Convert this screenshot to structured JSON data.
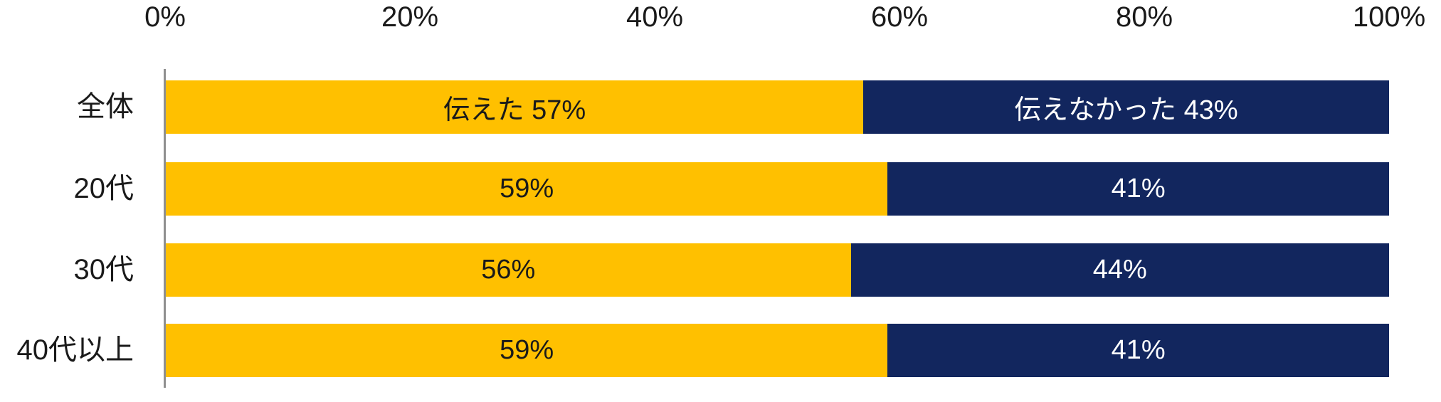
{
  "chart_data": {
    "type": "bar",
    "orientation": "horizontal",
    "stacked": true,
    "categories": [
      "全体",
      "20代",
      "30代",
      "40代以上"
    ],
    "series": [
      {
        "name": "伝えた",
        "values": [
          57,
          59,
          56,
          59
        ],
        "color": "#FFC000",
        "text_color": "#1a1a1a"
      },
      {
        "name": "伝えなかった",
        "values": [
          43,
          41,
          44,
          41
        ],
        "color": "#12265E",
        "text_color": "#ffffff"
      }
    ],
    "segment_labels": [
      [
        "伝えた 57%",
        "伝えなかった 43%"
      ],
      [
        "59%",
        "41%"
      ],
      [
        "56%",
        "44%"
      ],
      [
        "59%",
        "41%"
      ]
    ],
    "x_tick_labels": [
      "0%",
      "20%",
      "40%",
      "60%",
      "80%",
      "100%"
    ],
    "xlim": [
      0,
      100
    ],
    "legend_position": "none",
    "gridlines": false,
    "axis_line_color": "#8f8f8f",
    "bar_color_gold": "#FFC000",
    "bar_color_navy": "#12265E"
  },
  "layout_hints": {
    "note": "values in segment_labels are exactly the text rendered inside each bar segment"
  }
}
